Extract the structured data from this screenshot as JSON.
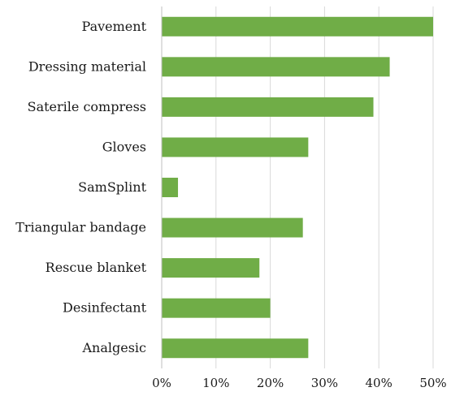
{
  "chart_data": {
    "type": "bar",
    "orientation": "horizontal",
    "categories": [
      "Pavement",
      "Dressing material",
      "Saterile compress",
      "Gloves",
      "SamSplint",
      "Triangular bandage",
      "Rescue blanket",
      "Desinfectant",
      "Analgesic"
    ],
    "values": [
      50,
      42,
      39,
      27,
      3,
      26,
      18,
      20,
      27
    ],
    "x_ticks": [
      "0%",
      "10%",
      "20%",
      "30%",
      "40%",
      "50%"
    ],
    "xlim": [
      0,
      50
    ],
    "unit": "%",
    "grid": true,
    "legend": "none",
    "title": "",
    "xlabel": "",
    "ylabel": "",
    "bar_color": "#70ad47"
  }
}
